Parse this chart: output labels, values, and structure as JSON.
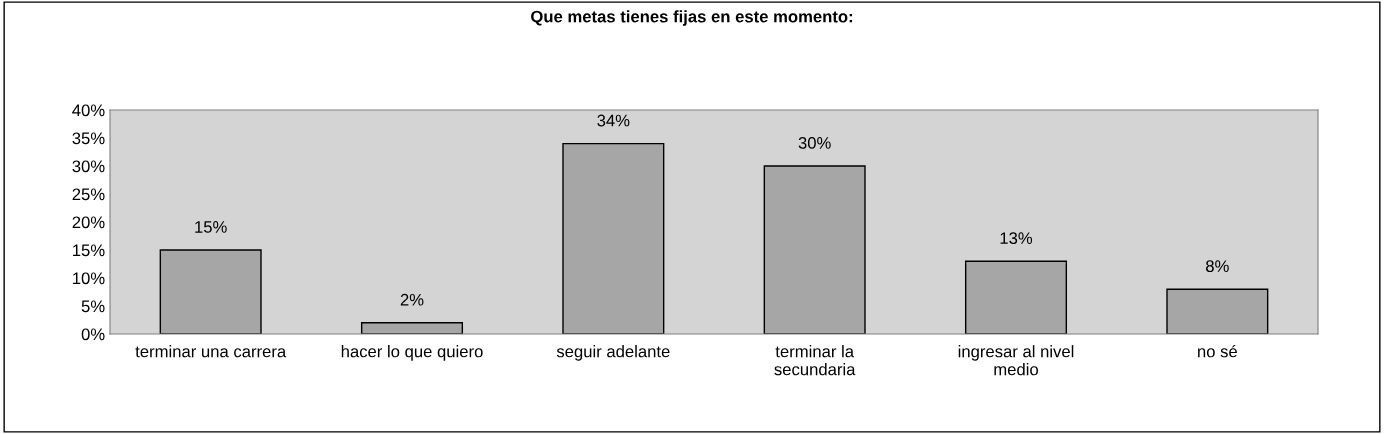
{
  "chart_data": {
    "type": "bar",
    "title": "Que metas tienes fijas en este momento:",
    "categories": [
      "terminar una carrera",
      "hacer lo que quiero",
      "seguir adelante",
      "terminar la\nsecundaria",
      "ingresar al nivel\nmedio",
      "no sé"
    ],
    "values": [
      15,
      2,
      34,
      30,
      13,
      8
    ],
    "value_labels": [
      "15%",
      "2%",
      "34%",
      "30%",
      "13%",
      "8%"
    ],
    "color": "#a6a6a6",
    "ylim": [
      0,
      40
    ],
    "yticks": [
      {
        "value": 0,
        "label": "0%"
      },
      {
        "value": 5,
        "label": "5%"
      },
      {
        "value": 10,
        "label": "10%"
      },
      {
        "value": 15,
        "label": "15%"
      },
      {
        "value": 20,
        "label": "20%"
      },
      {
        "value": 25,
        "label": "25%"
      },
      {
        "value": 30,
        "label": "30%"
      },
      {
        "value": 35,
        "label": "35%"
      },
      {
        "value": 40,
        "label": "40%"
      }
    ],
    "grid": false
  }
}
